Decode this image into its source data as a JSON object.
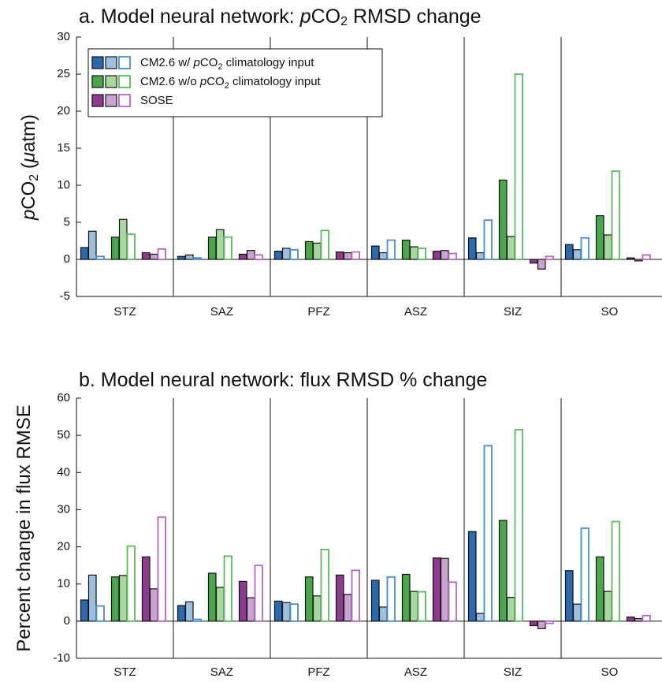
{
  "chart_data": [
    {
      "type": "grouped-bar",
      "title": [
        "a. Model neural network: ",
        "p",
        "CO",
        "2",
        " RMSD change"
      ],
      "ylabel": [
        "p",
        "CO",
        "2",
        " (",
        "μ",
        "atm)"
      ],
      "categories": [
        "STZ",
        "SAZ",
        "PFZ",
        "ASZ",
        "SIZ",
        "SO"
      ],
      "ylim": [
        -5,
        30
      ],
      "yticks": [
        -5,
        0,
        5,
        10,
        15,
        20,
        25,
        30
      ],
      "separators": true,
      "legend": "upper left",
      "series": [
        {
          "name": [
            "CM2.6 w/ ",
            "p",
            "CO",
            "2",
            " climatology input"
          ],
          "colors": [
            "#2a6aad",
            "#9dc0df",
            "#4a8cc7"
          ],
          "values": [
            [
              1.6,
              3.8,
              0.4
            ],
            [
              0.4,
              0.6,
              0.2
            ],
            [
              1.1,
              1.5,
              1.3
            ],
            [
              1.8,
              0.9,
              2.6
            ],
            [
              2.9,
              0.9,
              5.3
            ],
            [
              2.0,
              1.3,
              2.9
            ]
          ]
        },
        {
          "name": [
            "CM2.6 w/o ",
            "p",
            "CO",
            "2",
            " climatology input"
          ],
          "colors": [
            "#4aa64a",
            "#a8d8a0",
            "#5cb85c"
          ],
          "values": [
            [
              3.0,
              5.4,
              3.4
            ],
            [
              3.0,
              4.0,
              3.0
            ],
            [
              2.4,
              2.2,
              3.9
            ],
            [
              2.6,
              1.7,
              1.5
            ],
            [
              10.7,
              3.1,
              25.0
            ],
            [
              5.9,
              3.3,
              11.9
            ]
          ]
        },
        {
          "name": [
            "SOSE"
          ],
          "colors": [
            "#8e3a8e",
            "#c9a4cf",
            "#b067bf"
          ],
          "values": [
            [
              0.9,
              0.7,
              1.4
            ],
            [
              0.7,
              1.2,
              0.6
            ],
            [
              1.0,
              0.9,
              1.0
            ],
            [
              1.1,
              1.2,
              0.8
            ],
            [
              -0.5,
              -1.3,
              0.4
            ],
            [
              0.2,
              -0.2,
              0.6
            ]
          ]
        }
      ]
    },
    {
      "type": "grouped-bar",
      "title": [
        "b. Model neural network: flux RMSD % change"
      ],
      "ylabel": [
        "Percent change in flux RMSE"
      ],
      "categories": [
        "STZ",
        "SAZ",
        "PFZ",
        "ASZ",
        "SIZ",
        "SO"
      ],
      "ylim": [
        -10,
        60
      ],
      "yticks": [
        -10,
        0,
        10,
        20,
        30,
        40,
        50,
        60
      ],
      "separators": true,
      "series": [
        {
          "colors": [
            "#2a6aad",
            "#9dc0df",
            "#4a8cc7"
          ],
          "values": [
            [
              5.7,
              12.4,
              4.1
            ],
            [
              4.2,
              5.2,
              0.5
            ],
            [
              5.4,
              5.0,
              4.6
            ],
            [
              11.0,
              3.8,
              11.9
            ],
            [
              24.1,
              2.1,
              47.2
            ],
            [
              13.6,
              4.6,
              25.0
            ]
          ]
        },
        {
          "colors": [
            "#4aa64a",
            "#a8d8a0",
            "#5cb85c"
          ],
          "values": [
            [
              11.9,
              12.3,
              20.2
            ],
            [
              12.9,
              9.1,
              17.5
            ],
            [
              11.9,
              6.8,
              19.3
            ],
            [
              12.6,
              8.0,
              7.9
            ],
            [
              27.1,
              6.4,
              51.5
            ],
            [
              17.3,
              8.0,
              26.8
            ]
          ]
        },
        {
          "colors": [
            "#8e3a8e",
            "#c9a4cf",
            "#b067bf"
          ],
          "values": [
            [
              17.3,
              8.7,
              28.0
            ],
            [
              10.7,
              6.3,
              15.0
            ],
            [
              12.4,
              7.2,
              13.7
            ],
            [
              17.0,
              16.9,
              10.5
            ],
            [
              -1.2,
              -2.0,
              -0.6
            ],
            [
              1.1,
              0.7,
              1.5
            ]
          ]
        }
      ]
    }
  ]
}
